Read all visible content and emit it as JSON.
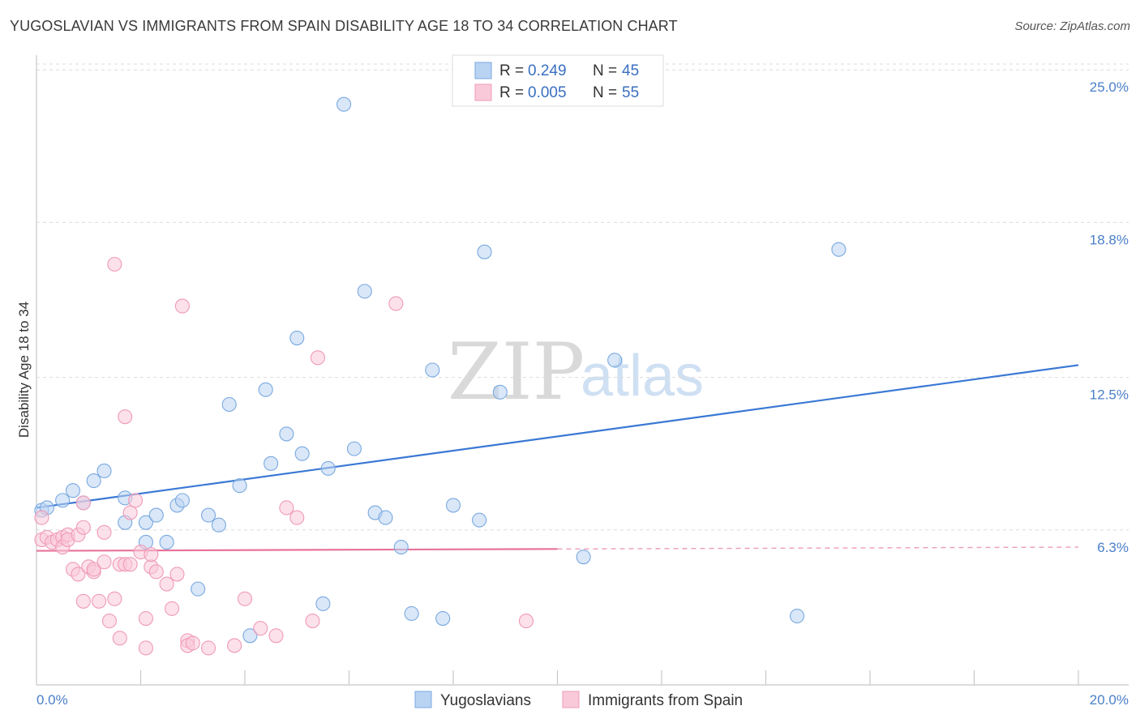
{
  "header": {
    "title": "YUGOSLAVIAN VS IMMIGRANTS FROM SPAIN DISABILITY AGE 18 TO 34 CORRELATION CHART",
    "source": "Source: ZipAtlas.com"
  },
  "watermark": {
    "zip": "ZIP",
    "atlas": "atlas"
  },
  "legend": {
    "rows": [
      {
        "r_label": "R =",
        "r_value": "0.249",
        "n_label": "N =",
        "n_value": "45",
        "color": "#a8c8f0"
      },
      {
        "r_label": "R =",
        "r_value": "0.005",
        "n_label": "N =",
        "n_value": "55",
        "color": "#f6b8cc"
      }
    ]
  },
  "bottom_legend": {
    "series1": "Yugoslavians",
    "series2": "Immigrants from Spain"
  },
  "chart_data": {
    "type": "scatter",
    "title": "YUGOSLAVIAN VS IMMIGRANTS FROM SPAIN DISABILITY AGE 18 TO 34 CORRELATION CHART",
    "xlabel": "",
    "ylabel": "Disability Age 18 to 34",
    "xlim": [
      0,
      20
    ],
    "ylim": [
      0,
      25.6
    ],
    "x_tick_labels": [
      "0.0%",
      "20.0%"
    ],
    "y_ticks": [
      6.3,
      12.5,
      18.8,
      25.0
    ],
    "y_tick_labels": [
      "6.3%",
      "12.5%",
      "18.8%",
      "25.0%"
    ],
    "series": [
      {
        "name": "Yugoslavians",
        "color": "#7aa9e0",
        "fill": "#b9d3f3",
        "line_color": "#3a78d4",
        "trend": {
          "x": [
            0.0,
            20.0
          ],
          "y": [
            7.2,
            13.0
          ],
          "dashed_from": null
        },
        "points": [
          [
            0.1,
            7.1
          ],
          [
            0.2,
            7.2
          ],
          [
            0.5,
            7.5
          ],
          [
            0.7,
            7.9
          ],
          [
            0.9,
            7.4
          ],
          [
            1.1,
            8.3
          ],
          [
            1.3,
            8.7
          ],
          [
            1.7,
            6.6
          ],
          [
            1.7,
            7.6
          ],
          [
            2.1,
            6.6
          ],
          [
            2.1,
            5.8
          ],
          [
            2.3,
            6.9
          ],
          [
            2.5,
            5.8
          ],
          [
            2.7,
            7.3
          ],
          [
            2.8,
            7.5
          ],
          [
            3.1,
            3.9
          ],
          [
            3.3,
            6.9
          ],
          [
            3.5,
            6.5
          ],
          [
            3.7,
            11.4
          ],
          [
            3.9,
            8.1
          ],
          [
            4.1,
            2.0
          ],
          [
            4.4,
            12.0
          ],
          [
            4.5,
            9.0
          ],
          [
            4.8,
            10.2
          ],
          [
            5.0,
            14.1
          ],
          [
            5.1,
            9.4
          ],
          [
            5.5,
            3.3
          ],
          [
            5.6,
            8.8
          ],
          [
            5.9,
            23.6
          ],
          [
            6.1,
            9.6
          ],
          [
            6.3,
            16.0
          ],
          [
            6.5,
            7.0
          ],
          [
            6.7,
            6.8
          ],
          [
            7.0,
            5.6
          ],
          [
            7.2,
            2.9
          ],
          [
            7.6,
            12.8
          ],
          [
            7.8,
            2.7
          ],
          [
            8.0,
            7.3
          ],
          [
            8.5,
            6.7
          ],
          [
            8.6,
            17.6
          ],
          [
            8.9,
            11.9
          ],
          [
            10.5,
            5.2
          ],
          [
            11.1,
            13.2
          ],
          [
            14.6,
            2.8
          ],
          [
            15.4,
            17.7
          ]
        ]
      },
      {
        "name": "Immigrants from Spain",
        "color": "#ef9ab8",
        "fill": "#f9c9d9",
        "line_color": "#e8739c",
        "trend": {
          "x": [
            0.0,
            20.0
          ],
          "y": [
            5.45,
            5.6
          ],
          "dashed_from": 10.0
        },
        "points": [
          [
            0.1,
            6.8
          ],
          [
            0.1,
            5.9
          ],
          [
            0.2,
            6.0
          ],
          [
            0.3,
            5.8
          ],
          [
            0.4,
            5.9
          ],
          [
            0.5,
            6.0
          ],
          [
            0.5,
            5.6
          ],
          [
            0.6,
            6.1
          ],
          [
            0.6,
            5.9
          ],
          [
            0.7,
            4.7
          ],
          [
            0.8,
            4.5
          ],
          [
            0.8,
            6.1
          ],
          [
            0.9,
            6.4
          ],
          [
            0.9,
            7.4
          ],
          [
            0.9,
            3.4
          ],
          [
            1.0,
            4.8
          ],
          [
            1.1,
            4.6
          ],
          [
            1.1,
            4.7
          ],
          [
            1.2,
            3.4
          ],
          [
            1.3,
            5.0
          ],
          [
            1.3,
            6.2
          ],
          [
            1.4,
            2.6
          ],
          [
            1.5,
            3.5
          ],
          [
            1.5,
            17.1
          ],
          [
            1.6,
            1.9
          ],
          [
            1.6,
            4.9
          ],
          [
            1.7,
            4.9
          ],
          [
            1.7,
            10.9
          ],
          [
            1.8,
            4.9
          ],
          [
            1.8,
            7.0
          ],
          [
            1.9,
            7.5
          ],
          [
            2.0,
            5.4
          ],
          [
            2.1,
            1.5
          ],
          [
            2.1,
            2.7
          ],
          [
            2.2,
            4.8
          ],
          [
            2.2,
            5.3
          ],
          [
            2.3,
            4.6
          ],
          [
            2.5,
            4.1
          ],
          [
            2.6,
            3.1
          ],
          [
            2.7,
            4.5
          ],
          [
            2.8,
            15.4
          ],
          [
            2.9,
            1.8
          ],
          [
            2.9,
            1.6
          ],
          [
            3.0,
            1.7
          ],
          [
            3.3,
            1.5
          ],
          [
            3.8,
            1.6
          ],
          [
            4.0,
            3.5
          ],
          [
            4.3,
            2.3
          ],
          [
            4.6,
            2.0
          ],
          [
            4.8,
            7.2
          ],
          [
            5.0,
            6.8
          ],
          [
            5.3,
            2.6
          ],
          [
            5.4,
            13.3
          ],
          [
            6.9,
            15.5
          ],
          [
            9.4,
            2.6
          ]
        ]
      }
    ]
  }
}
